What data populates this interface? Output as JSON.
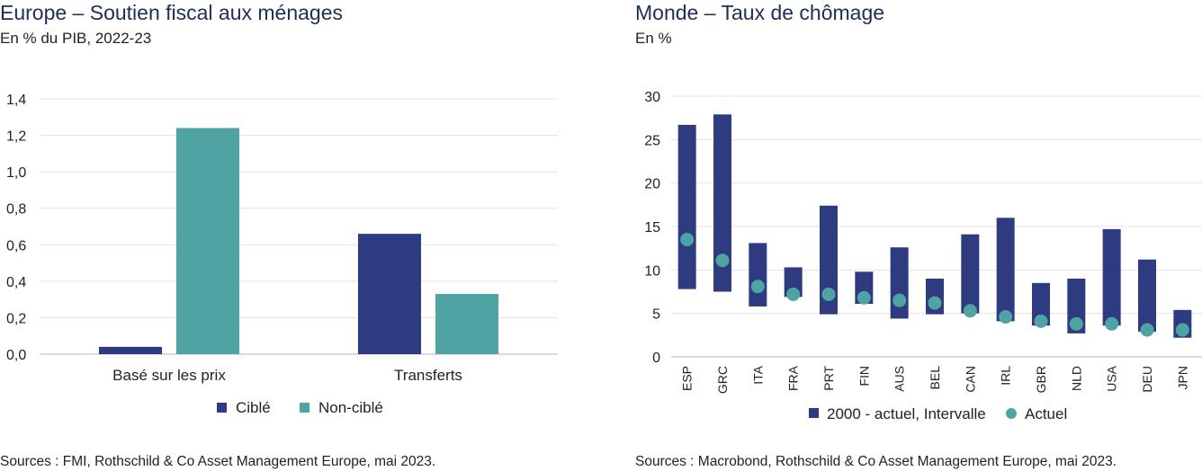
{
  "chart_data": [
    {
      "type": "bar",
      "title": "Europe – Soutien fiscal aux ménages",
      "subtitle": "En % du PIB, 2022-23",
      "categories": [
        "Basé sur les prix",
        "Transferts"
      ],
      "series": [
        {
          "name": "Ciblé",
          "values": [
            0.04,
            0.66
          ],
          "color": "#2e3b80"
        },
        {
          "name": "Non-ciblé",
          "values": [
            1.24,
            0.33
          ],
          "color": "#4fa3a2"
        }
      ],
      "yticks": [
        "0,0",
        "0,2",
        "0,4",
        "0,6",
        "0,8",
        "1,0",
        "1,2",
        "1,4"
      ],
      "ylim": [
        0,
        1.4
      ],
      "grid": true,
      "legend": "bottom-center",
      "source": "Sources : FMI, Rothschild & Co Asset Management Europe, mai 2023."
    },
    {
      "type": "range-scatter",
      "title": "Monde – Taux de chômage",
      "subtitle": "En %",
      "categories": [
        "ESP",
        "GRC",
        "ITA",
        "FRA",
        "PRT",
        "FIN",
        "AUS",
        "BEL",
        "CAN",
        "IRL",
        "GBR",
        "NLD",
        "USA",
        "DEU",
        "JPN"
      ],
      "range_series": {
        "name": "2000 - actuel, Intervalle",
        "color": "#2e3b80",
        "low": [
          7.8,
          7.5,
          5.8,
          6.9,
          4.9,
          6.1,
          4.4,
          4.9,
          5.0,
          4.1,
          3.6,
          2.7,
          3.6,
          2.9,
          2.2
        ],
        "high": [
          26.7,
          27.9,
          13.1,
          10.3,
          17.4,
          9.8,
          12.6,
          9.0,
          14.1,
          16.0,
          8.5,
          9.0,
          14.7,
          11.2,
          5.4
        ]
      },
      "point_series": {
        "name": "Actuel",
        "color": "#4fa3a2",
        "values": [
          13.5,
          11.1,
          8.1,
          7.2,
          7.2,
          6.8,
          6.5,
          6.2,
          5.3,
          4.6,
          4.1,
          3.8,
          3.8,
          3.1,
          3.1
        ]
      },
      "yticks": [
        "0",
        "5",
        "10",
        "15",
        "20",
        "25",
        "30"
      ],
      "ylim": [
        0,
        30
      ],
      "grid": true,
      "legend": "bottom-center",
      "source": "Sources : Macrobond, Rothschild & Co Asset Management Europe, mai 2023."
    }
  ]
}
